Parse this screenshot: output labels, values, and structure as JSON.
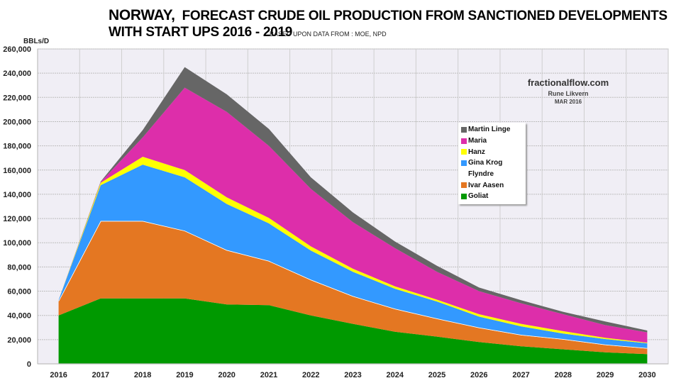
{
  "chart_data": {
    "type": "area",
    "stacked": true,
    "title": "NORWAY, FORECAST CRUDE OIL PRODUCTION FROM SANCTIONED DEVELOPMENTS",
    "title_prefix": "NORWAY,",
    "title_rest": "FORECAST CRUDE OIL PRODUCTION FROM SANCTIONED DEVELOPMENTS",
    "title_line2": "WITH START UPS 2016 - 2019",
    "subtitle": "BASED UPON DATA FROM : MOE, NPD",
    "ylabel": "BBLs/D",
    "xlabel": "",
    "ylim": [
      0,
      260000
    ],
    "yticks": [
      0,
      20000,
      40000,
      60000,
      80000,
      100000,
      120000,
      140000,
      160000,
      180000,
      200000,
      220000,
      240000,
      260000
    ],
    "ytick_labels": [
      "0",
      "20,000",
      "40,000",
      "60,000",
      "80,000",
      "100,000",
      "120,000",
      "140,000",
      "160,000",
      "180,000",
      "200,000",
      "220,000",
      "240,000",
      "260,000"
    ],
    "categories": [
      "2016",
      "2017",
      "2018",
      "2019",
      "2020",
      "2021",
      "2022",
      "2023",
      "2024",
      "2025",
      "2026",
      "2027",
      "2028",
      "2029",
      "2030"
    ],
    "grid": true,
    "legend_position": "upper-right",
    "watermark": {
      "site": "fractionalflow.com",
      "author": "Rune Likvern",
      "date": "MAR 2016"
    },
    "series": [
      {
        "name": "Goliat",
        "color": "#009900",
        "values": [
          40000,
          54000,
          54000,
          54000,
          49000,
          48500,
          40000,
          33000,
          26500,
          22500,
          18000,
          14500,
          12000,
          9500,
          8000
        ]
      },
      {
        "name": "Ivar Aasen",
        "color": "#E47722",
        "values": [
          12000,
          64000,
          64000,
          56000,
          45000,
          36500,
          29500,
          23000,
          19000,
          15000,
          12000,
          9500,
          8500,
          6500,
          5000
        ]
      },
      {
        "name": "Flyndre",
        "color": "#FFFFFF",
        "values": [
          0,
          0,
          0,
          0,
          0,
          0,
          0,
          0,
          0,
          0,
          0,
          0,
          0,
          0,
          0
        ]
      },
      {
        "name": "Gina Krog",
        "color": "#3399FF",
        "values": [
          500,
          29500,
          46500,
          44000,
          38000,
          31000,
          24000,
          20000,
          16500,
          14000,
          9000,
          7000,
          4500,
          4500,
          4000
        ]
      },
      {
        "name": "Hanz",
        "color": "#FFFF00",
        "values": [
          0,
          2000,
          6500,
          6000,
          5500,
          4500,
          3500,
          2500,
          2000,
          1500,
          2000,
          2000,
          2000,
          1000,
          500
        ]
      },
      {
        "name": "Maria",
        "color": "#DD2EAA",
        "values": [
          0,
          500,
          16000,
          68000,
          70500,
          59500,
          47500,
          38500,
          31500,
          23000,
          19000,
          17000,
          14000,
          10500,
          8500
        ]
      },
      {
        "name": "Martin Linge",
        "color": "#666666",
        "values": [
          0,
          500,
          6000,
          17000,
          14500,
          14000,
          9500,
          8000,
          5500,
          5000,
          3000,
          2500,
          2000,
          3000,
          1500
        ]
      }
    ],
    "legend_order": [
      "Martin Linge",
      "Maria",
      "Hanz",
      "Gina Krog",
      "Flyndre",
      "Ivar Aasen",
      "Goliat"
    ]
  }
}
